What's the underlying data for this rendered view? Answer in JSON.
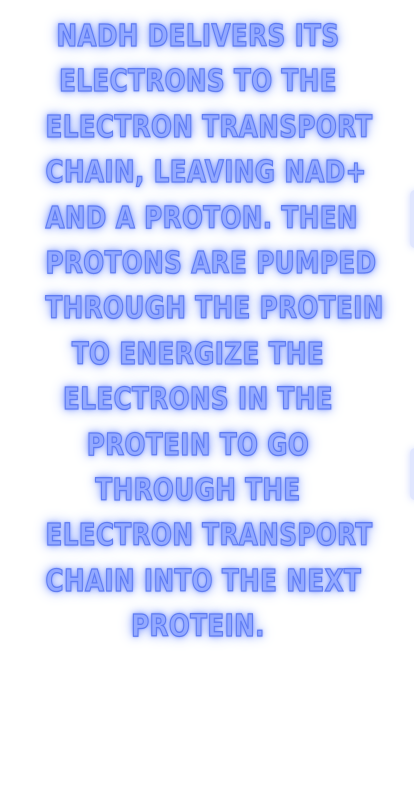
{
  "caption": {
    "lines": [
      "NADH DELIVERS ITS",
      "ELECTRONS TO THE",
      "ELECTRON TRANSPORT",
      "CHAIN, LEAVING NAD+",
      "AND A PROTON. THEN",
      "PROTONS ARE PUMPED",
      "THROUGH THE PROTEIN",
      "TO ENERGIZE THE",
      "ELECTRONS IN THE",
      "PROTEIN TO GO",
      "THROUGH THE",
      "ELECTRON TRANSPORT",
      "CHAIN INTO THE NEXT",
      "PROTEIN."
    ]
  },
  "colors": {
    "text_fill": "#93a9ff",
    "text_outline": "#5f7cf2",
    "glow": "#7e97ff",
    "background": "#ffffff"
  }
}
